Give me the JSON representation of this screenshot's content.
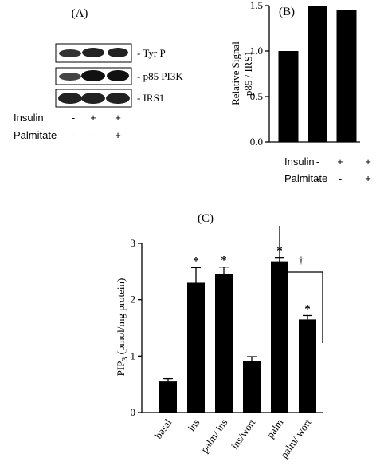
{
  "blot": {
    "label": "(A)",
    "bands": [
      "- Tyr P",
      "- p85 PI3K",
      "- IRS1"
    ],
    "conditions": [
      {
        "name": "Insulin",
        "signs": [
          "-",
          "+",
          "+"
        ]
      },
      {
        "name": "Palmitate",
        "signs": [
          "-",
          "-",
          "+"
        ]
      }
    ]
  },
  "chart_data": [
    {
      "type": "bar",
      "label": "(B)",
      "ylabel": [
        "Relative Signal",
        "p85 / IRS1"
      ],
      "values": [
        1.0,
        1.5,
        1.45
      ],
      "color": "#000000",
      "ylim": [
        0,
        1.5
      ],
      "yticks": [
        {
          "value": 0,
          "label": "0.0"
        },
        {
          "value": 0.5,
          "label": "0.5"
        },
        {
          "value": 1,
          "label": "1.0"
        },
        {
          "value": 1.5,
          "label": "1.5"
        }
      ],
      "conditions": [
        {
          "name": "Insulin",
          "signs": [
            "-",
            "+",
            "+"
          ]
        },
        {
          "name": "Palmitate",
          "signs": [
            "-",
            "-",
            "+"
          ]
        }
      ]
    },
    {
      "type": "bar",
      "label": "(C)",
      "ylabel": {
        "main": "PIP",
        "sub": "3",
        "rest": " (pmol/mg protein)"
      },
      "categories": [
        "basal",
        "ins",
        "palm/ ins",
        "ins/wort",
        "palm",
        "palm/ wort"
      ],
      "values": [
        0.55,
        2.3,
        2.45,
        0.92,
        2.68,
        1.65
      ],
      "errors": [
        0.05,
        0.27,
        0.13,
        0.07,
        0.07,
        0.07
      ],
      "significance": [
        null,
        "*",
        "*",
        null,
        "*",
        "*"
      ],
      "comparison_label": "†",
      "color": "#000000",
      "ylim": [
        0,
        3
      ],
      "yticks": [
        0,
        1,
        2,
        3
      ]
    }
  ]
}
